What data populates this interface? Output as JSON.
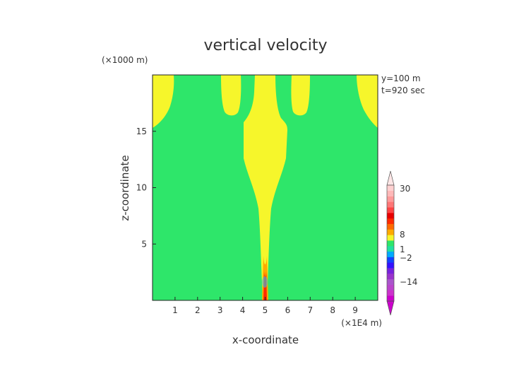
{
  "chart_data": {
    "type": "heatmap",
    "title": "vertical velocity",
    "xlabel": "x-coordinate",
    "ylabel": "z-coordinate",
    "x_scale_label": "(×1E4 m)",
    "y_scale_label": "(×1000 m)",
    "annotations": [
      "y=100 m",
      "t=920 sec"
    ],
    "xlim": [
      0,
      10
    ],
    "ylim": [
      0,
      20
    ],
    "x_ticks": [
      "1",
      "2",
      "3",
      "4",
      "5",
      "6",
      "7",
      "8",
      "9"
    ],
    "y_ticks": [
      "5",
      "10",
      "15"
    ],
    "background_color": "#2ee66a",
    "updraft_color": "#f6f62b",
    "colorbar_labels": [
      "30",
      "8",
      "1",
      "−2",
      "−14"
    ],
    "colorbar_colors": [
      "#cc00cc",
      "#cc33cc",
      "#bb44cc",
      "#aa55cc",
      "#9933cc",
      "#7722dd",
      "#3311ff",
      "#1144ff",
      "#00aaff",
      "#22e0a0",
      "#2ee66a",
      "#f6f62b",
      "#ffaa00",
      "#ff6a00",
      "#ff2a00",
      "#e80000",
      "#ff4444",
      "#ff7777",
      "#ff9a9a",
      "#ffb8b8",
      "#ffd0d0"
    ]
  }
}
